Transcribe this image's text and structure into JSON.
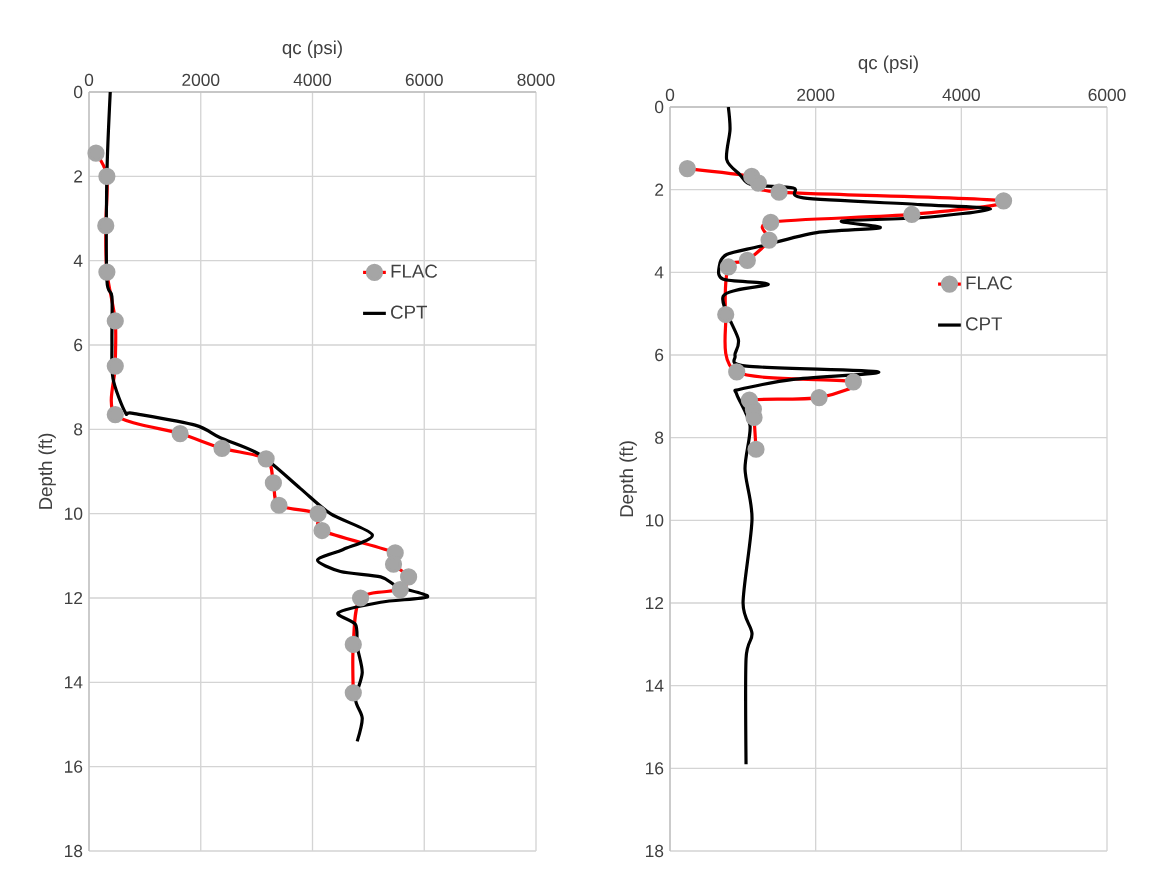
{
  "chart_data": [
    {
      "type": "line",
      "xlabel": "qc (psi)",
      "ylabel": "Depth (ft)",
      "xlim": [
        0,
        8000
      ],
      "xticks": [
        0,
        2000,
        4000,
        6000,
        8000
      ],
      "ylim": [
        18,
        0
      ],
      "yticks": [
        0,
        2,
        4,
        6,
        8,
        10,
        12,
        14,
        16,
        18
      ],
      "grid": true,
      "legend": "right",
      "series": [
        {
          "name": "FLAC",
          "color": "#ff0000",
          "marker": "circle",
          "x": [
            125,
            320,
            300,
            320,
            470,
            470,
            470,
            1630,
            2380,
            3170,
            3300,
            3400,
            4100,
            4170,
            5480,
            5450,
            5720,
            5570,
            4860,
            4730,
            4730
          ],
          "values": [
            1.45,
            2.0,
            3.17,
            4.27,
            5.43,
            6.5,
            7.65,
            8.1,
            8.45,
            8.7,
            9.27,
            9.8,
            10.0,
            10.4,
            10.93,
            11.2,
            11.5,
            11.8,
            12.0,
            13.1,
            14.25
          ]
        },
        {
          "name": "CPT",
          "color": "#000000",
          "marker": "none",
          "x": [
            380,
            320,
            320,
            410,
            410,
            430,
            650,
            790,
            1900,
            2350,
            3060,
            3780,
            4320,
            5070,
            4550,
            4090,
            4500,
            5220,
            5520,
            6060,
            5220,
            4460,
            4770,
            4800,
            4890,
            4770,
            4890,
            4800
          ],
          "values": [
            0,
            2.0,
            4.45,
            4.85,
            5.9,
            6.8,
            7.6,
            7.62,
            7.9,
            8.2,
            8.6,
            9.4,
            10.0,
            10.5,
            10.85,
            11.1,
            11.37,
            11.5,
            11.73,
            11.97,
            12.1,
            12.35,
            12.63,
            13.15,
            13.77,
            14.4,
            14.85,
            15.4
          ]
        }
      ]
    },
    {
      "type": "line",
      "xlabel": "qc (psi)",
      "ylabel": "Depth (ft)",
      "xlim": [
        0,
        6000
      ],
      "xticks": [
        0,
        2000,
        4000,
        6000
      ],
      "ylim": [
        18,
        0
      ],
      "yticks": [
        0,
        2,
        4,
        6,
        8,
        10,
        12,
        14,
        16,
        18
      ],
      "grid": true,
      "legend": "right",
      "series": [
        {
          "name": "FLAC",
          "color": "#ff0000",
          "marker": "circle",
          "x": [
            238,
            1122,
            1213,
            1497,
            4580,
            3320,
            1383,
            1360,
            1062,
            801,
            765,
            916,
            2518,
            2047,
            1090,
            1145,
            1154,
            1181
          ],
          "values": [
            1.49,
            1.68,
            1.84,
            2.06,
            2.27,
            2.6,
            2.79,
            3.22,
            3.71,
            3.87,
            5.02,
            6.41,
            6.65,
            7.03,
            7.09,
            7.31,
            7.51,
            8.28
          ]
        },
        {
          "name": "CPT",
          "color": "#000000",
          "marker": "none",
          "x": [
            801,
            824,
            778,
            962,
            1122,
            1694,
            1831,
            3434,
            4400,
            3430,
            2358,
            2885,
            2015,
            1236,
            778,
            677,
            732,
            1350,
            732,
            938,
            893,
            1053,
            2861,
            1694,
            962,
            916,
            1099,
            1030,
            1126,
            1003,
            1126,
            1044,
            1044
          ],
          "values": [
            0,
            0.55,
            1.27,
            1.64,
            1.88,
            1.96,
            2.2,
            2.36,
            2.47,
            2.68,
            2.76,
            2.92,
            3.04,
            3.37,
            3.57,
            3.85,
            4.17,
            4.29,
            4.57,
            5.62,
            6.02,
            6.27,
            6.41,
            6.59,
            6.83,
            6.95,
            7.71,
            8.76,
            9.97,
            12.0,
            12.74,
            13.35,
            15.9
          ]
        }
      ]
    }
  ]
}
